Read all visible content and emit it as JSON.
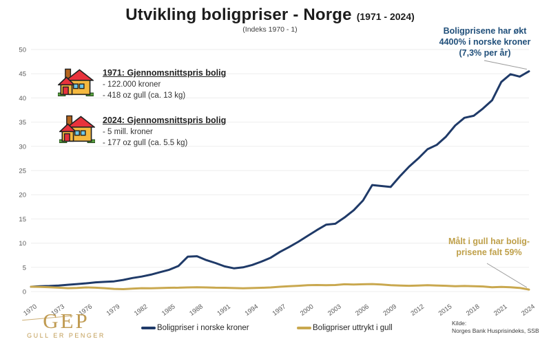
{
  "header": {
    "title": "Utvikling boligpriser - Norge",
    "title_suffix": "(1971 - 2024)",
    "subtitle": "(Indeks 1970 - 1)"
  },
  "annotations": {
    "nok": {
      "lines": [
        "Boligprisene har økt",
        "4400% i norske kroner",
        "(7,3% per år)"
      ]
    },
    "gold": {
      "lines": [
        "Målt i gull har bolig-",
        "prisene falt 59%"
      ]
    },
    "house_1971": {
      "heading": "1971: Gjennomsnittspris bolig",
      "lines": [
        "- 122.000 kroner",
        "- 418 oz gull (ca. 13 kg)"
      ]
    },
    "house_2024": {
      "heading": "2024: Gjennomsnittspris bolig",
      "lines": [
        "- 5 mill. kroner",
        "- 177 oz gull (ca. 5.5 kg)"
      ]
    }
  },
  "legend": [
    {
      "label": "Boligpriser i norske kroner",
      "color": "#1f3a68"
    },
    {
      "label": "Boligpriser uttrykt i gull",
      "color": "#c9a84f"
    }
  ],
  "source": {
    "label": "Kilde:",
    "text": "Norges Bank Husprisindeks, SSB"
  },
  "logo": {
    "text": "GEP",
    "tagline": "GULL ER PENGER"
  },
  "colors": {
    "navy": "#1f3a68",
    "navy_text": "#1f4e79",
    "gold": "#c9a84f",
    "gold_text": "#bfa04a",
    "grid": "#ededed",
    "axis_text": "#595959",
    "pointer": "#999999"
  },
  "chart_data": {
    "type": "line",
    "title": "Utvikling boligpriser - Norge (1971 - 2024)",
    "subtitle": "(Indeks 1970 - 1)",
    "x_start": 1970,
    "x_end": 2024,
    "x_ticks": [
      1970,
      1973,
      1976,
      1979,
      1982,
      1985,
      1988,
      1991,
      1994,
      1997,
      2000,
      2003,
      2006,
      2009,
      2012,
      2015,
      2018,
      2021,
      2024
    ],
    "ylim": [
      0,
      50
    ],
    "y_ticks": [
      0,
      5,
      10,
      15,
      20,
      25,
      30,
      35,
      40,
      45,
      50
    ],
    "grid": true,
    "legend_position": "bottom",
    "series": [
      {
        "name": "Boligpriser i norske kroner",
        "color": "#1f3a68",
        "values": [
          1.0,
          1.1,
          1.15,
          1.25,
          1.4,
          1.55,
          1.7,
          1.9,
          2.0,
          2.1,
          2.4,
          2.8,
          3.1,
          3.5,
          4.0,
          4.5,
          5.3,
          7.2,
          7.3,
          6.5,
          5.9,
          5.2,
          4.8,
          5.0,
          5.5,
          6.2,
          7.0,
          8.2,
          9.2,
          10.3,
          11.5,
          12.7,
          13.8,
          14.0,
          15.3,
          16.8,
          18.8,
          22.0,
          21.8,
          21.6,
          23.8,
          25.8,
          27.5,
          29.4,
          30.3,
          32.0,
          34.3,
          35.9,
          36.3,
          37.8,
          39.5,
          43.3,
          44.9,
          44.4,
          45.5
        ]
      },
      {
        "name": "Boligpriser uttrykt i gull",
        "color": "#c9a84f",
        "values": [
          1.0,
          0.95,
          0.9,
          0.8,
          0.7,
          0.75,
          0.85,
          0.8,
          0.7,
          0.55,
          0.5,
          0.6,
          0.7,
          0.68,
          0.72,
          0.78,
          0.8,
          0.85,
          0.9,
          0.85,
          0.8,
          0.78,
          0.72,
          0.68,
          0.72,
          0.78,
          0.85,
          1.0,
          1.1,
          1.2,
          1.3,
          1.35,
          1.3,
          1.35,
          1.5,
          1.45,
          1.5,
          1.55,
          1.45,
          1.3,
          1.25,
          1.2,
          1.25,
          1.3,
          1.25,
          1.2,
          1.1,
          1.15,
          1.1,
          1.05,
          0.9,
          0.95,
          0.9,
          0.75,
          0.41
        ]
      }
    ]
  }
}
